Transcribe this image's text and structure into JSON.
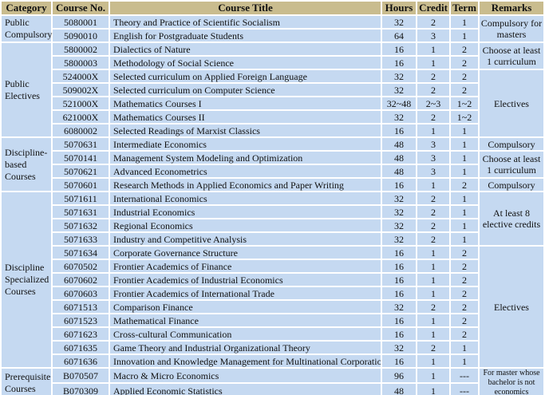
{
  "colors": {
    "header_bg": "#C9BC8E",
    "cell_bg": "#C5D9F1",
    "grid": "#FFFFFF",
    "text": "#111111"
  },
  "table": {
    "columns": [
      {
        "key": "category",
        "label": "Category"
      },
      {
        "key": "no",
        "label": "Course No."
      },
      {
        "key": "title",
        "label": "Course Title"
      },
      {
        "key": "hours",
        "label": "Hours"
      },
      {
        "key": "credit",
        "label": "Credit"
      },
      {
        "key": "term",
        "label": "Term"
      },
      {
        "key": "remarks",
        "label": "Remarks"
      }
    ],
    "rows": [
      {
        "no": "5080001",
        "title": "Theory and Practice of Scientific Socialism",
        "hours": "32",
        "credit": "2",
        "term": "1"
      },
      {
        "no": "5090010",
        "title": "English for Postgraduate Students",
        "hours": "64",
        "credit": "3",
        "term": "1"
      },
      {
        "no": "5800002",
        "title": "Dialectics of Nature",
        "hours": "16",
        "credit": "1",
        "term": "2"
      },
      {
        "no": "5800003",
        "title": "Methodology of Social Science",
        "hours": "16",
        "credit": "1",
        "term": "2"
      },
      {
        "no": "524000X",
        "title": "Selected curriculum on Applied Foreign Language",
        "hours": "32",
        "credit": "2",
        "term": "2"
      },
      {
        "no": "509002X",
        "title": "Selected curriculum on Computer Science",
        "hours": "32",
        "credit": "2",
        "term": "2"
      },
      {
        "no": "521000X",
        "title": "Mathematics Courses  I",
        "hours": "32~48",
        "credit": "2~3",
        "term": "1~2"
      },
      {
        "no": "621000X",
        "title": "Mathematics Courses II",
        "hours": "32",
        "credit": "2",
        "term": "1~2"
      },
      {
        "no": "6080002",
        "title": "Selected Readings of Marxist Classics",
        "hours": "16",
        "credit": "1",
        "term": "1"
      },
      {
        "no": "5070631",
        "title": "Intermediate Economics",
        "hours": "48",
        "credit": "3",
        "term": "1"
      },
      {
        "no": "5070141",
        "title": "Management System Modeling and Optimization",
        "hours": "48",
        "credit": "3",
        "term": "1"
      },
      {
        "no": "5070621",
        "title": "Advanced Econometrics",
        "hours": "48",
        "credit": "3",
        "term": "1"
      },
      {
        "no": "5070601",
        "title": "Research Methods in Applied Economics and Paper Writing",
        "hours": "16",
        "credit": "1",
        "term": "2"
      },
      {
        "no": "5071611",
        "title": "International Economics",
        "hours": "32",
        "credit": "2",
        "term": "1"
      },
      {
        "no": "5071631",
        "title": "Industrial Economics",
        "hours": "32",
        "credit": "2",
        "term": "1"
      },
      {
        "no": "5071632",
        "title": "Regional Economics",
        "hours": "32",
        "credit": "2",
        "term": "1"
      },
      {
        "no": "5071633",
        "title": "Industry and Competitive Analysis",
        "hours": "32",
        "credit": "2",
        "term": "1"
      },
      {
        "no": "5071634",
        "title": "Corporate Governance Structure",
        "hours": "16",
        "credit": "1",
        "term": "2"
      },
      {
        "no": "6070502",
        "title": "Frontier Academics  of Finance",
        "hours": "16",
        "credit": "1",
        "term": "2"
      },
      {
        "no": "6070602",
        "title": "Frontier Academics  of Industrial Economics",
        "hours": "16",
        "credit": "1",
        "term": "2"
      },
      {
        "no": "6070603",
        "title": "Frontier Academics  of International Trade",
        "hours": "16",
        "credit": "1",
        "term": "2"
      },
      {
        "no": "6071513",
        "title": "Comparison Finance",
        "hours": "32",
        "credit": "2",
        "term": "2"
      },
      {
        "no": "6071523",
        "title": "Mathematical Finance",
        "hours": "16",
        "credit": "1",
        "term": "2"
      },
      {
        "no": "6071623",
        "title": "Cross-cultural Communication",
        "hours": "16",
        "credit": "1",
        "term": "2"
      },
      {
        "no": "6071635",
        "title": "Game Theory and Industrial Organizational Theory",
        "hours": "32",
        "credit": "2",
        "term": "1"
      },
      {
        "no": "6071636",
        "title": "Innovation and Knowledge Management for Multinational Corporation",
        "hours": "16",
        "credit": "1",
        "term": "1"
      },
      {
        "no": "B070507",
        "title": "Macro & Micro Economics",
        "hours": "96",
        "credit": "1",
        "term": "---"
      },
      {
        "no": "B070309",
        "title": "Applied Economic Statistics",
        "hours": "48",
        "credit": "1",
        "term": "---"
      }
    ],
    "category_spans": [
      {
        "label": "Public Compulsory",
        "start": 0,
        "rows": 2
      },
      {
        "label": "Public Electives",
        "start": 2,
        "rows": 7
      },
      {
        "label": "Discipline-based Courses",
        "start": 9,
        "rows": 4
      },
      {
        "label": "Discipline Specialized Courses",
        "start": 13,
        "rows": 13
      },
      {
        "label": "Prerequisite Courses",
        "start": 26,
        "rows": 2
      }
    ],
    "remark_spans": [
      {
        "label": "Compulsory for masters",
        "start": 0,
        "rows": 2,
        "small": false
      },
      {
        "label": "Choose at least 1 curriculum",
        "start": 2,
        "rows": 2,
        "small": false
      },
      {
        "label": "Electives",
        "start": 4,
        "rows": 5,
        "small": false
      },
      {
        "label": "Compulsory",
        "start": 9,
        "rows": 1,
        "small": false
      },
      {
        "label": "Choose at least 1 curriculum",
        "start": 10,
        "rows": 2,
        "small": false
      },
      {
        "label": "Compulsory",
        "start": 12,
        "rows": 1,
        "small": false
      },
      {
        "label": "At least 8 elective credits",
        "start": 13,
        "rows": 4,
        "small": false
      },
      {
        "label": "Electives",
        "start": 17,
        "rows": 9,
        "small": false
      },
      {
        "label": "For master whose bachelor is not economics",
        "start": 26,
        "rows": 2,
        "small": true
      }
    ]
  }
}
